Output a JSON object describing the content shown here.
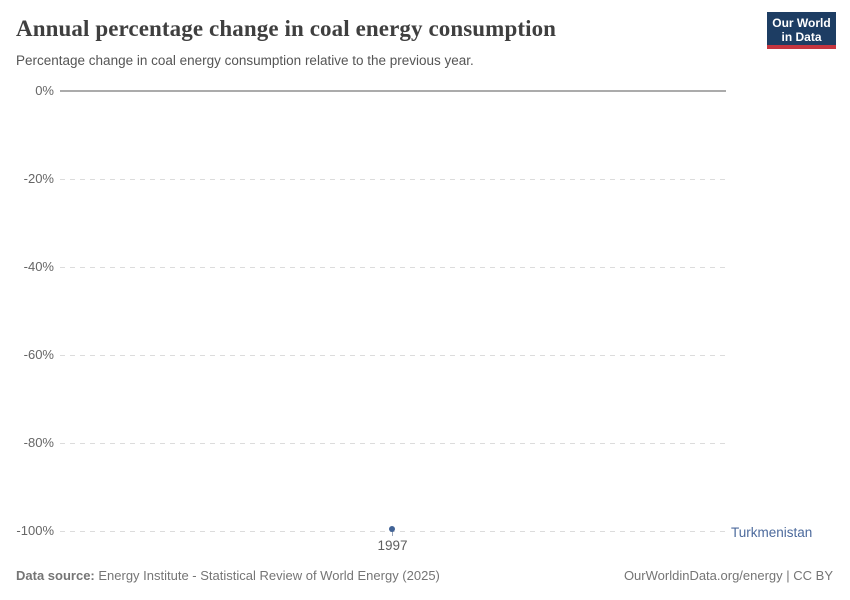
{
  "header": {
    "title": "Annual percentage change in coal energy consumption",
    "subtitle": "Percentage change in coal energy consumption relative to the previous year.",
    "logo": {
      "line1": "Our World",
      "line2": "in Data",
      "bg_color": "#1d3d63",
      "bar_color": "#c5353f"
    }
  },
  "chart_data": {
    "type": "line",
    "title": "Annual percentage change in coal energy consumption",
    "xlabel": "",
    "ylabel": "",
    "x": [
      1997
    ],
    "series": [
      {
        "name": "Turkmenistan",
        "color": "#4c6a9c",
        "values": [
          -99.5
        ]
      }
    ],
    "x_ticks": [
      "1997"
    ],
    "y_ticks": [
      "0%",
      "-20%",
      "-40%",
      "-60%",
      "-80%",
      "-100%"
    ],
    "ylim": [
      -100,
      0
    ],
    "grid": "horizontal-dashed",
    "zero_line": "solid-gray",
    "legend_position": "right-of-line-end",
    "marker": "single-point-dot"
  },
  "footer": {
    "datasource_label": "Data source:",
    "datasource_text": " Energy Institute - Statistical Review of World Energy (2025)",
    "right_text": "OurWorldinData.org/energy | CC BY"
  }
}
